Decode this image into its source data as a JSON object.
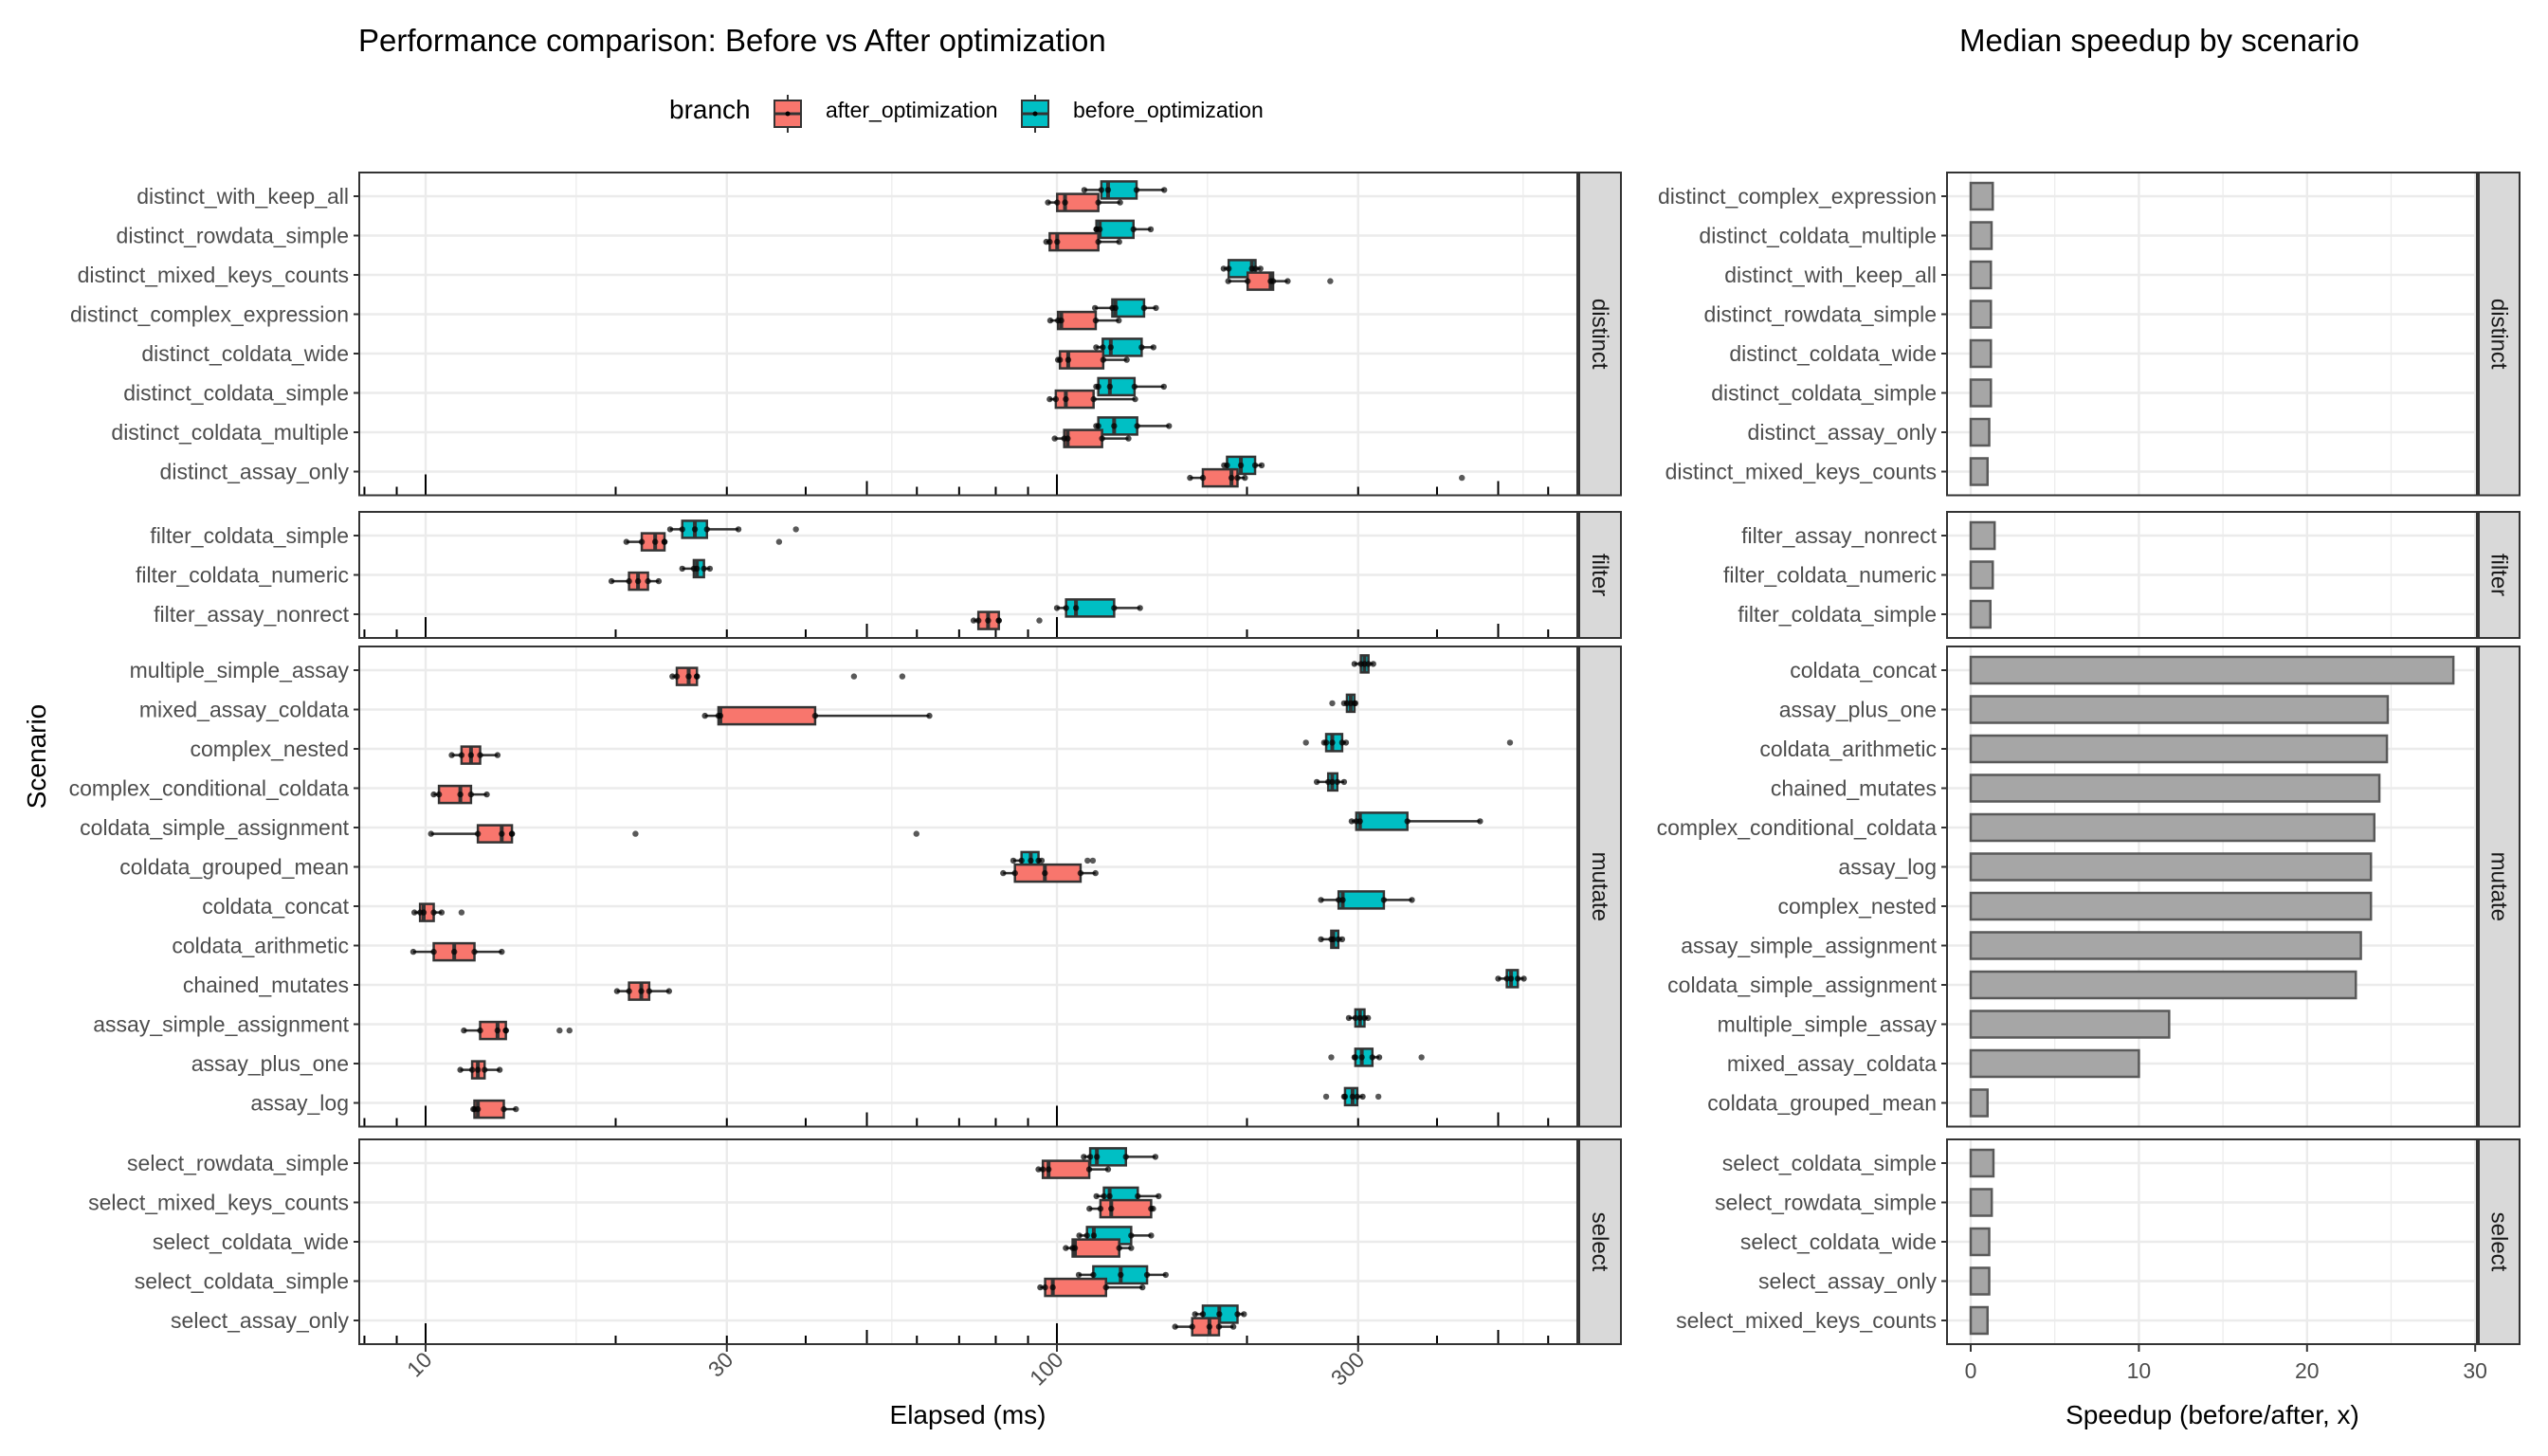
{
  "chart_data": [
    {
      "type": "boxplot",
      "title": "Performance comparison: Before vs After optimization",
      "xlabel": "Elapsed (ms)",
      "ylabel": "Scenario",
      "x_scale": "log10",
      "xlim": [
        6.2,
        530
      ],
      "x_ticks": [
        10,
        30,
        100,
        300
      ],
      "x_tick_labels": [
        "10",
        "30",
        "100",
        "300"
      ],
      "grid": true,
      "legend": {
        "title": "branch",
        "position": "top",
        "entries": [
          {
            "name": "after_optimization",
            "color": "#F8766D"
          },
          {
            "name": "before_optimization",
            "color": "#00BFC4"
          }
        ]
      },
      "facets": [
        {
          "name": "distinct",
          "scenarios": [
            {
              "name": "distinct_with_keep_all",
              "before": {
                "whisker_low": 110.5,
                "q1": 117.6,
                "median": 120.5,
                "q3": 133.7,
                "whisker_high": 147.9,
                "outliers": []
              },
              "after": {
                "whisker_low": 96.8,
                "q1": 100.1,
                "median": 103.0,
                "q3": 116.3,
                "whisker_high": 125.9,
                "outliers": []
              }
            },
            {
              "name": "distinct_rowdata_simple",
              "before": {
                "whisker_low": 115.5,
                "q1": 115.5,
                "median": 116.9,
                "q3": 132.2,
                "whisker_high": 140.8,
                "outliers": []
              },
              "after": {
                "whisker_low": 96.2,
                "q1": 97.4,
                "median": 100.1,
                "q3": 116.3,
                "whisker_high": 125.5,
                "outliers": []
              }
            },
            {
              "name": "distinct_mixed_keys_counts",
              "before": {
                "whisker_low": 183.7,
                "q1": 187.1,
                "median": 203.6,
                "q3": 206.3,
                "whisker_high": 210.1,
                "outliers": []
              },
              "after": {
                "whisker_low": 186.8,
                "q1": 200.5,
                "median": 218.0,
                "q3": 220.0,
                "whisker_high": 232.0,
                "outliers": [
                  271
                ]
              }
            },
            {
              "name": "distinct_complex_expression",
              "before": {
                "whisker_low": 114.9,
                "q1": 122.4,
                "median": 123.8,
                "q3": 137.4,
                "whisker_high": 143.5,
                "outliers": []
              },
              "after": {
                "whisker_low": 97.6,
                "q1": 100.4,
                "median": 101.6,
                "q3": 115.2,
                "whisker_high": 125.3,
                "outliers": []
              }
            },
            {
              "name": "distinct_coldata_wide",
              "before": {
                "whisker_low": 115.4,
                "q1": 118.2,
                "median": 121.7,
                "q3": 136.2,
                "whisker_high": 142.2,
                "outliers": []
              },
              "after": {
                "whisker_low": 100.4,
                "q1": 101.1,
                "median": 104.2,
                "q3": 118.4,
                "whisker_high": 129.0,
                "outliers": []
              }
            },
            {
              "name": "distinct_coldata_simple",
              "before": {
                "whisker_low": 115.4,
                "q1": 116.3,
                "median": 121.3,
                "q3": 132.7,
                "whisker_high": 147.7,
                "outliers": []
              },
              "after": {
                "whisker_low": 97.4,
                "q1": 99.6,
                "median": 103.3,
                "q3": 114.3,
                "whisker_high": 133.0,
                "outliers": []
              }
            },
            {
              "name": "distinct_coldata_multiple",
              "before": {
                "whisker_low": 115.4,
                "q1": 116.3,
                "median": 123.2,
                "q3": 134.0,
                "whisker_high": 150.5,
                "outliers": []
              },
              "after": {
                "whisker_low": 99.2,
                "q1": 102.7,
                "median": 104.0,
                "q3": 117.9,
                "whisker_high": 129.8,
                "outliers": []
              }
            },
            {
              "name": "distinct_assay_only",
              "before": {
                "whisker_low": 184.0,
                "q1": 186.0,
                "median": 195.6,
                "q3": 206.0,
                "whisker_high": 211.0,
                "outliers": []
              },
              "after": {
                "whisker_low": 162.5,
                "q1": 170.3,
                "median": 189.0,
                "q3": 193.2,
                "whisker_high": 198.5,
                "outliers": [
                  438
                ]
              }
            }
          ]
        },
        {
          "name": "filter",
          "scenarios": [
            {
              "name": "filter_coldata_simple",
              "before": {
                "whisker_low": 24.4,
                "q1": 25.5,
                "median": 26.7,
                "q3": 27.9,
                "whisker_high": 31.3,
                "outliers": [
                  38.6
                ]
              },
              "after": {
                "whisker_low": 20.8,
                "q1": 22.0,
                "median": 23.1,
                "q3": 23.9,
                "whisker_high": 23.9,
                "outliers": [
                  36.3
                ]
              }
            },
            {
              "name": "filter_coldata_numeric",
              "before": {
                "whisker_low": 25.5,
                "q1": 26.6,
                "median": 26.9,
                "q3": 27.6,
                "whisker_high": 28.2,
                "outliers": []
              },
              "after": {
                "whisker_low": 19.7,
                "q1": 21.0,
                "median": 21.7,
                "q3": 22.5,
                "whisker_high": 23.4,
                "outliers": []
              }
            },
            {
              "name": "filter_assay_nonrect",
              "before": {
                "whisker_low": 100.0,
                "q1": 103.4,
                "median": 107.2,
                "q3": 123.2,
                "whisker_high": 135.4,
                "outliers": []
              },
              "after": {
                "whisker_low": 73.8,
                "q1": 75.1,
                "median": 77.8,
                "q3": 80.9,
                "whisker_high": 80.9,
                "outliers": [
                  93.8
                ]
              }
            }
          ]
        },
        {
          "name": "mutate",
          "scenarios": [
            {
              "name": "multiple_simple_assay",
              "before": {
                "whisker_low": 296,
                "q1": 303,
                "median": 307,
                "q3": 311.5,
                "whisker_high": 317,
                "outliers": []
              },
              "after": {
                "whisker_low": 24.6,
                "q1": 25.0,
                "median": 26.1,
                "q3": 26.9,
                "whisker_high": 26.9,
                "outliers": [
                  47.7,
                  56.9
                ]
              }
            },
            {
              "name": "mixed_assay_coldata",
              "before": {
                "whisker_low": 285,
                "q1": 288,
                "median": 292,
                "q3": 296,
                "whisker_high": 297,
                "outliers": [
                  273
                ]
              },
              "after": {
                "whisker_low": 27.7,
                "q1": 29.1,
                "median": 29.3,
                "q3": 41.4,
                "whisker_high": 62.8,
                "outliers": []
              }
            },
            {
              "name": "complex_nested",
              "before": {
                "whisker_low": 265,
                "q1": 267,
                "median": 273,
                "q3": 283,
                "whisker_high": 287,
                "outliers": [
                  248,
                  522
                ]
              },
              "after": {
                "whisker_low": 11.0,
                "q1": 11.4,
                "median": 11.8,
                "q3": 12.2,
                "whisker_high": 13.0,
                "outliers": []
              }
            },
            {
              "name": "complex_conditional_coldata",
              "before": {
                "whisker_low": 258,
                "q1": 269,
                "median": 273,
                "q3": 278,
                "whisker_high": 285,
                "outliers": []
              },
              "after": {
                "whisker_low": 10.3,
                "q1": 10.5,
                "median": 11.35,
                "q3": 11.8,
                "whisker_high": 12.5,
                "outliers": []
              }
            },
            {
              "name": "coldata_simple_assignment",
              "before": {
                "whisker_low": 293,
                "q1": 298,
                "median": 302,
                "q3": 359,
                "whisker_high": 468,
                "outliers": []
              },
              "after": {
                "whisker_low": 10.2,
                "q1": 12.1,
                "median": 13.2,
                "q3": 13.7,
                "whisker_high": 13.7,
                "outliers": [
                  21.5,
                  59.9
                ]
              }
            },
            {
              "name": "coldata_grouped_mean",
              "before": {
                "whisker_low": 85.3,
                "q1": 87.9,
                "median": 90.9,
                "q3": 93.5,
                "whisker_high": 94.6,
                "outliers": [
                  111.8,
                  114
                ]
              },
              "after": {
                "whisker_low": 82.2,
                "q1": 85.8,
                "median": 95.7,
                "q3": 109.0,
                "whisker_high": 115.1,
                "outliers": []
              }
            },
            {
              "name": "coldata_concat",
              "before": {
                "whisker_low": 262,
                "q1": 279.4,
                "median": 283.6,
                "q3": 329.5,
                "whisker_high": 365,
                "outliers": []
              },
              "after": {
                "whisker_low": 9.6,
                "q1": 9.8,
                "median": 9.93,
                "q3": 10.3,
                "whisker_high": 10.6,
                "outliers": [
                  11.4
                ]
              }
            },
            {
              "name": "coldata_arithmetic",
              "before": {
                "whisker_low": 262,
                "q1": 272,
                "median": 274,
                "q3": 279,
                "whisker_high": 283,
                "outliers": []
              },
              "after": {
                "whisker_low": 9.56,
                "q1": 10.3,
                "median": 11.1,
                "q3": 11.95,
                "whisker_high": 13.2,
                "outliers": []
              }
            },
            {
              "name": "chained_mutates",
              "before": {
                "whisker_low": 500,
                "q1": 516,
                "median": 524,
                "q3": 537,
                "whisker_high": 549,
                "outliers": []
              },
              "after": {
                "whisker_low": 20.1,
                "q1": 21.0,
                "median": 21.96,
                "q3": 22.6,
                "whisker_high": 24.3,
                "outliers": []
              }
            },
            {
              "name": "assay_simple_assignment",
              "before": {
                "whisker_low": 290,
                "q1": 297,
                "median": 302,
                "q3": 307,
                "whisker_high": 311,
                "outliers": []
              },
              "after": {
                "whisker_low": 11.5,
                "q1": 12.2,
                "median": 13.0,
                "q3": 13.4,
                "whisker_high": 13.4,
                "outliers": [
                  16.3,
                  16.9
                ]
              }
            },
            {
              "name": "assay_plus_one",
              "before": {
                "whisker_low": 296,
                "q1": 297,
                "median": 304,
                "q3": 316,
                "whisker_high": 324,
                "outliers": [
                  272,
                  378
                ]
              },
              "after": {
                "whisker_low": 11.35,
                "q1": 11.85,
                "median": 12.1,
                "q3": 12.4,
                "whisker_high": 13.1,
                "outliers": []
              }
            },
            {
              "name": "assay_log",
              "before": {
                "whisker_low": 285,
                "q1": 286,
                "median": 294,
                "q3": 299,
                "whisker_high": 305,
                "outliers": [
                  267,
                  323
                ]
              },
              "after": {
                "whisker_low": 11.9,
                "q1": 11.95,
                "median": 12.1,
                "q3": 13.3,
                "whisker_high": 13.9,
                "outliers": []
              }
            }
          ]
        },
        {
          "name": "select",
          "scenarios": [
            {
              "name": "select_rowdata_simple",
              "before": {
                "whisker_low": 110.3,
                "q1": 112.9,
                "median": 115.7,
                "q3": 128.6,
                "whisker_high": 143.2,
                "outliers": []
              },
              "after": {
                "whisker_low": 93.5,
                "q1": 95.0,
                "median": 97.0,
                "q3": 112.5,
                "whisker_high": 120.5,
                "outliers": []
              }
            },
            {
              "name": "select_mixed_keys_counts",
              "before": {
                "whisker_low": 115.5,
                "q1": 118.7,
                "median": 121.2,
                "q3": 134.3,
                "whisker_high": 144.9,
                "outliers": []
              },
              "after": {
                "whisker_low": 112.6,
                "q1": 117.2,
                "median": 121.9,
                "q3": 141.0,
                "whisker_high": 142.0,
                "outliers": []
              }
            },
            {
              "name": "select_coldata_wide",
              "before": {
                "whisker_low": 108.5,
                "q1": 111.6,
                "median": 114.4,
                "q3": 131.1,
                "whisker_high": 141.0,
                "outliers": []
              },
              "after": {
                "whisker_low": 103.3,
                "q1": 105.9,
                "median": 106.8,
                "q3": 125.5,
                "whisker_high": 131.1,
                "outliers": []
              }
            },
            {
              "name": "select_coldata_simple",
              "before": {
                "whisker_low": 108.3,
                "q1": 114.2,
                "median": 126.2,
                "q3": 138.9,
                "whisker_high": 148.7,
                "outliers": []
              },
              "after": {
                "whisker_low": 94.1,
                "q1": 95.8,
                "median": 98.5,
                "q3": 119.6,
                "whisker_high": 136.6,
                "outliers": []
              }
            },
            {
              "name": "select_assay_only",
              "before": {
                "whisker_low": 165.5,
                "q1": 170.3,
                "median": 180.8,
                "q3": 193.2,
                "whisker_high": 197.8,
                "outliers": []
              },
              "after": {
                "whisker_low": 153.9,
                "q1": 163.8,
                "median": 174.4,
                "q3": 180.6,
                "whisker_high": 190.3,
                "outliers": []
              }
            }
          ]
        }
      ]
    },
    {
      "type": "bar",
      "orientation": "horizontal",
      "title": "Median speedup by scenario",
      "xlabel": "Speedup (before/after, x)",
      "ylabel": "",
      "xlim": [
        -1.5,
        30.2
      ],
      "x_ticks": [
        0,
        10,
        20,
        30
      ],
      "x_tick_labels": [
        "0",
        "10",
        "20",
        "30"
      ],
      "grid": true,
      "bar_color": "#A6A6A6",
      "bar_outline": "#595959",
      "facets": [
        {
          "name": "distinct",
          "categories": [
            "distinct_complex_expression",
            "distinct_coldata_multiple",
            "distinct_with_keep_all",
            "distinct_rowdata_simple",
            "distinct_coldata_wide",
            "distinct_coldata_simple",
            "distinct_assay_only",
            "distinct_mixed_keys_counts"
          ],
          "values": [
            1.31,
            1.24,
            1.2,
            1.2,
            1.2,
            1.2,
            1.1,
            1.0
          ]
        },
        {
          "name": "filter",
          "categories": [
            "filter_assay_nonrect",
            "filter_coldata_numeric",
            "filter_coldata_simple"
          ],
          "values": [
            1.42,
            1.31,
            1.17
          ]
        },
        {
          "name": "mutate",
          "categories": [
            "coldata_concat",
            "assay_plus_one",
            "coldata_arithmetic",
            "chained_mutates",
            "complex_conditional_coldata",
            "assay_log",
            "complex_nested",
            "assay_simple_assignment",
            "coldata_simple_assignment",
            "multiple_simple_assay",
            "mixed_assay_coldata",
            "coldata_grouped_mean"
          ],
          "values": [
            28.7,
            24.8,
            24.75,
            24.3,
            24.0,
            23.8,
            23.8,
            23.2,
            22.9,
            11.8,
            10.0,
            1.0
          ]
        },
        {
          "name": "select",
          "categories": [
            "select_coldata_simple",
            "select_rowdata_simple",
            "select_coldata_wide",
            "select_assay_only",
            "select_mixed_keys_counts"
          ],
          "values": [
            1.35,
            1.25,
            1.1,
            1.1,
            1.0
          ]
        }
      ]
    }
  ]
}
